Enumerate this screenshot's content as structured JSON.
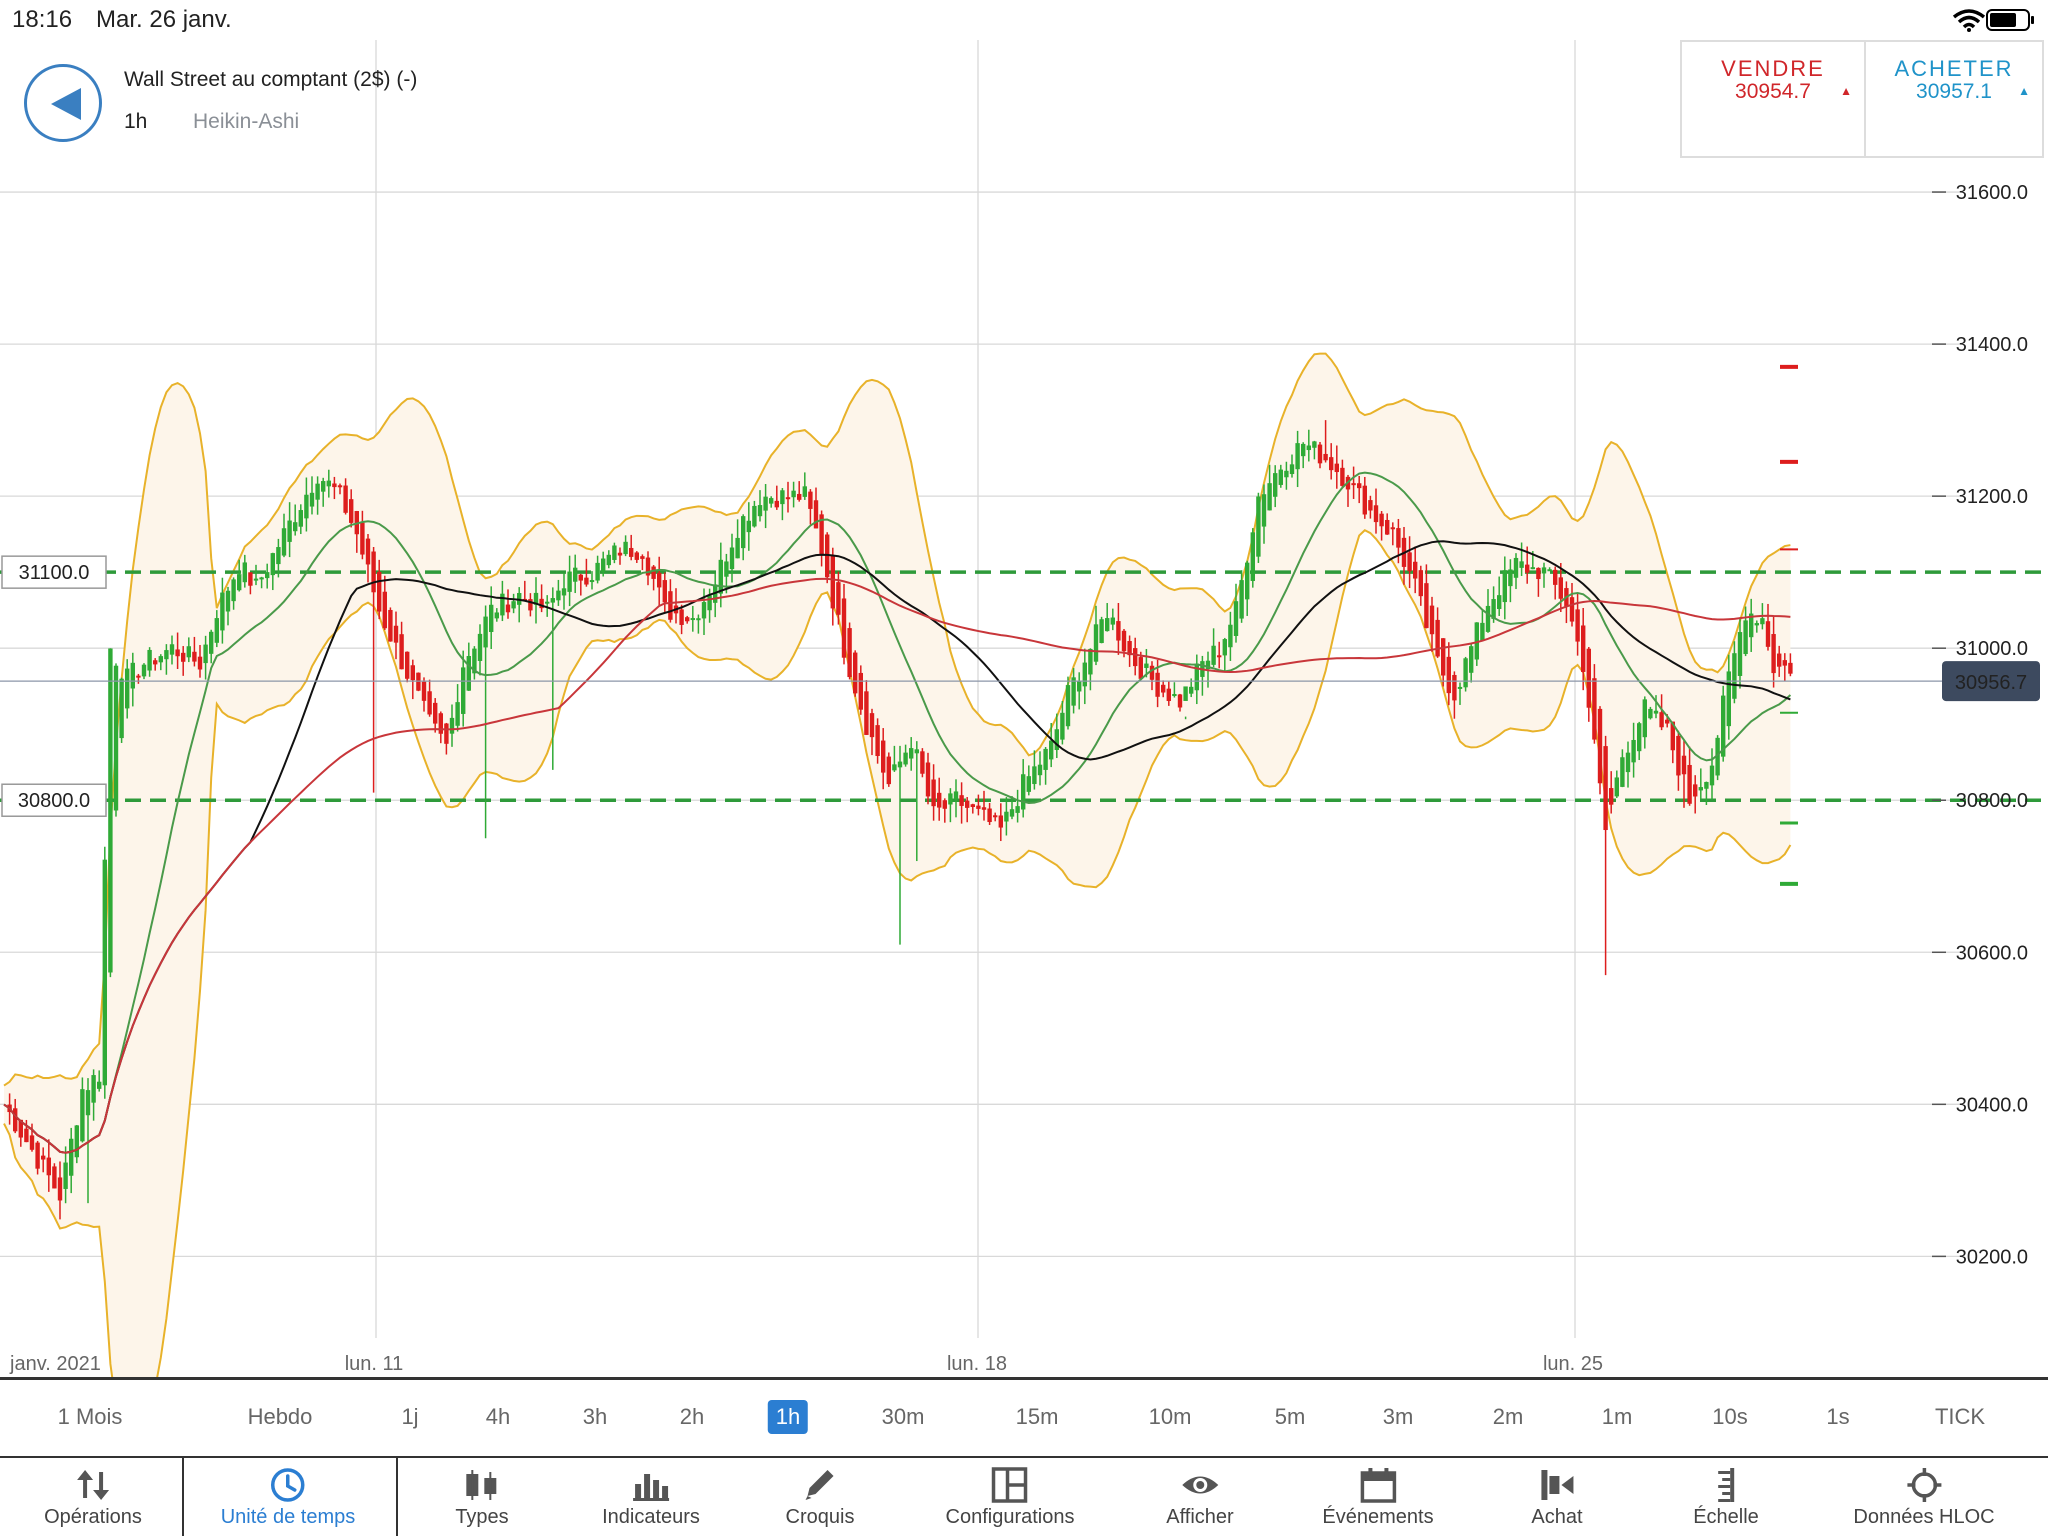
{
  "status_bar": {
    "time": "18:16",
    "date": "Mar. 26 janv."
  },
  "header": {
    "instrument": "Wall Street au comptant (2$) (-)",
    "timeframe": "1h",
    "chart_type": "Heikin-Ashi"
  },
  "quotes": {
    "sell_label": "VENDRE",
    "sell_price": "30954.7",
    "buy_label": "ACHETER",
    "buy_price": "30957.1",
    "sell_color": "#d0262a",
    "buy_color": "#1f93c9"
  },
  "chart_data": {
    "type": "candlestick",
    "series_style": "Heikin-Ashi",
    "ylim": [
      30090,
      31800
    ],
    "y_ticks": [
      31600,
      31400,
      31200,
      31000,
      30800,
      30600,
      30400,
      30200
    ],
    "y_tick_labels": [
      "31600.0",
      "31400.0",
      "31200.0",
      "31000.0",
      "30800.0",
      "30600.0",
      "30400.0",
      "30200.0"
    ],
    "x_labels": [
      "janv. 2021",
      "lun. 11",
      "lun. 18",
      "lun. 25"
    ],
    "horizontal_lines": [
      {
        "value": 31100,
        "label": "31100.0",
        "color": "#2e9a3a"
      },
      {
        "value": 30800,
        "label": "30800.0",
        "color": "#2e9a3a"
      }
    ],
    "current_price": {
      "value": 30956.7,
      "label": "30956.7"
    },
    "bull_color": "#2faa36",
    "bear_color": "#dd1d1d",
    "bollinger_color": "#e8b22a",
    "sma_fast_color": "#4a9a4a",
    "sma_slow_color": "#111111",
    "sma_long_color": "#c8363a",
    "price_path": [
      [
        0,
        30400
      ],
      [
        10,
        30280
      ],
      [
        14,
        30420
      ],
      [
        17,
        30440
      ],
      [
        19,
        31000
      ],
      [
        22,
        30960
      ],
      [
        25,
        30980
      ],
      [
        30,
        31000
      ],
      [
        35,
        30980
      ],
      [
        38,
        31050
      ],
      [
        42,
        31110
      ],
      [
        45,
        31080
      ],
      [
        50,
        31150
      ],
      [
        56,
        31230
      ],
      [
        60,
        31200
      ],
      [
        63,
        31150
      ],
      [
        67,
        31050
      ],
      [
        70,
        31000
      ],
      [
        73,
        30950
      ],
      [
        76,
        30900
      ],
      [
        79,
        30870
      ],
      [
        82,
        30980
      ],
      [
        87,
        31050
      ],
      [
        92,
        31070
      ],
      [
        97,
        31050
      ],
      [
        100,
        31090
      ],
      [
        105,
        31100
      ],
      [
        110,
        31130
      ],
      [
        114,
        31130
      ],
      [
        118,
        31050
      ],
      [
        123,
        31040
      ],
      [
        127,
        31090
      ],
      [
        131,
        31160
      ],
      [
        135,
        31200
      ],
      [
        140,
        31200
      ],
      [
        143,
        31200
      ],
      [
        146,
        31130
      ],
      [
        150,
        31000
      ],
      [
        154,
        30900
      ],
      [
        158,
        30820
      ],
      [
        162,
        30880
      ],
      [
        166,
        30780
      ],
      [
        170,
        30800
      ],
      [
        174,
        30780
      ],
      [
        178,
        30760
      ],
      [
        182,
        30820
      ],
      [
        187,
        30870
      ],
      [
        190,
        30940
      ],
      [
        194,
        31000
      ],
      [
        197,
        31050
      ],
      [
        201,
        30990
      ],
      [
        206,
        30950
      ],
      [
        210,
        30930
      ],
      [
        214,
        30980
      ],
      [
        217,
        31000
      ],
      [
        220,
        31050
      ],
      [
        224,
        31200
      ],
      [
        228,
        31240
      ],
      [
        232,
        31270
      ],
      [
        236,
        31250
      ],
      [
        240,
        31220
      ],
      [
        244,
        31180
      ],
      [
        248,
        31150
      ],
      [
        252,
        31080
      ],
      [
        256,
        30980
      ],
      [
        259,
        30940
      ],
      [
        262,
        31000
      ],
      [
        265,
        31060
      ],
      [
        270,
        31110
      ],
      [
        275,
        31100
      ],
      [
        279,
        31060
      ],
      [
        282,
        30980
      ],
      [
        286,
        30760
      ],
      [
        289,
        30860
      ],
      [
        293,
        30920
      ],
      [
        297,
        30890
      ],
      [
        301,
        30800
      ],
      [
        305,
        30850
      ],
      [
        308,
        30960
      ],
      [
        311,
        31050
      ],
      [
        314,
        31040
      ],
      [
        316,
        30975
      ]
    ],
    "wick_spikes": [
      [
        15,
        30270
      ],
      [
        66,
        30810
      ],
      [
        86,
        30750
      ],
      [
        98,
        30840
      ],
      [
        160,
        30610
      ],
      [
        163,
        30720
      ],
      [
        211,
        30910
      ],
      [
        236,
        31300
      ],
      [
        286,
        30570
      ],
      [
        300,
        30790
      ]
    ]
  },
  "timeframes": [
    "1 Mois",
    "Hebdo",
    "1j",
    "4h",
    "3h",
    "2h",
    "1h",
    "30m",
    "15m",
    "10m",
    "5m",
    "3m",
    "2m",
    "1m",
    "10s",
    "1s",
    "TICK"
  ],
  "active_timeframe": "1h",
  "toolbar": {
    "operations": "Opérations",
    "timeunit": "Unité de temps",
    "types": "Types",
    "indicators": "Indicateurs",
    "sketch": "Croquis",
    "configs": "Configurations",
    "display": "Afficher",
    "events": "Événements",
    "buy": "Achat",
    "scale": "Échelle",
    "hloc": "Données HLOC"
  },
  "icons": [
    "wifi-icon",
    "battery-icon",
    "back-arrow-icon",
    "operations-icon",
    "clock-icon",
    "candles-icon",
    "bar-chart-icon",
    "pencil-icon",
    "layout-icon",
    "eye-icon",
    "calendar-icon",
    "buy-icon",
    "scale-icon",
    "crosshair-icon"
  ]
}
